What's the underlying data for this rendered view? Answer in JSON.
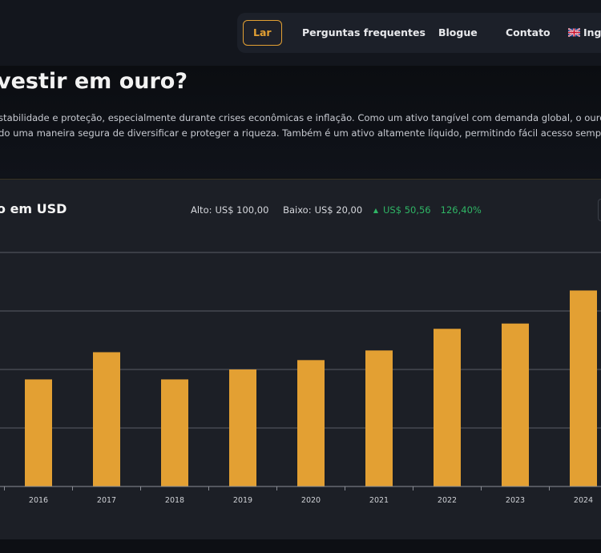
{
  "nav": {
    "items": [
      {
        "label": "Lar",
        "active": true
      },
      {
        "label": "Perguntas frequentes"
      },
      {
        "label": "Blogue"
      },
      {
        "label": "Contato"
      },
      {
        "label": "Ingl",
        "icon": "uk-flag-icon"
      }
    ]
  },
  "hero": {
    "title": "vestir em ouro?",
    "line1": "stabilidade e proteção, especialmente durante crises econômicas e inflação. Como um ativo tangível com demanda global, o ouro",
    "line2": "do uma maneira segura de diversificar e proteger a riqueza. Também é um ativo altamente líquido, permitindo fácil acesso sempre"
  },
  "chart_header": {
    "title": "o em USD",
    "high_label": "Alto:",
    "high_value": "US$ 100,00",
    "low_label": "Baixo:",
    "low_value": "US$ 20,00",
    "change_value": "US$ 50,56",
    "change_pct": "126,40%"
  },
  "colors": {
    "accent": "#e3a033",
    "bar": "#e3a033",
    "up": "#2fb565",
    "grid": "#5a5d66"
  },
  "chart_data": {
    "type": "bar",
    "categories": [
      "2016",
      "2017",
      "2018",
      "2019",
      "2020",
      "2021",
      "2022",
      "2023",
      "2024"
    ],
    "values": [
      36.6,
      45.9,
      36.6,
      40.0,
      43.2,
      46.5,
      53.9,
      55.7,
      67.0
    ],
    "ylim": [
      0,
      80
    ],
    "grid": true
  }
}
